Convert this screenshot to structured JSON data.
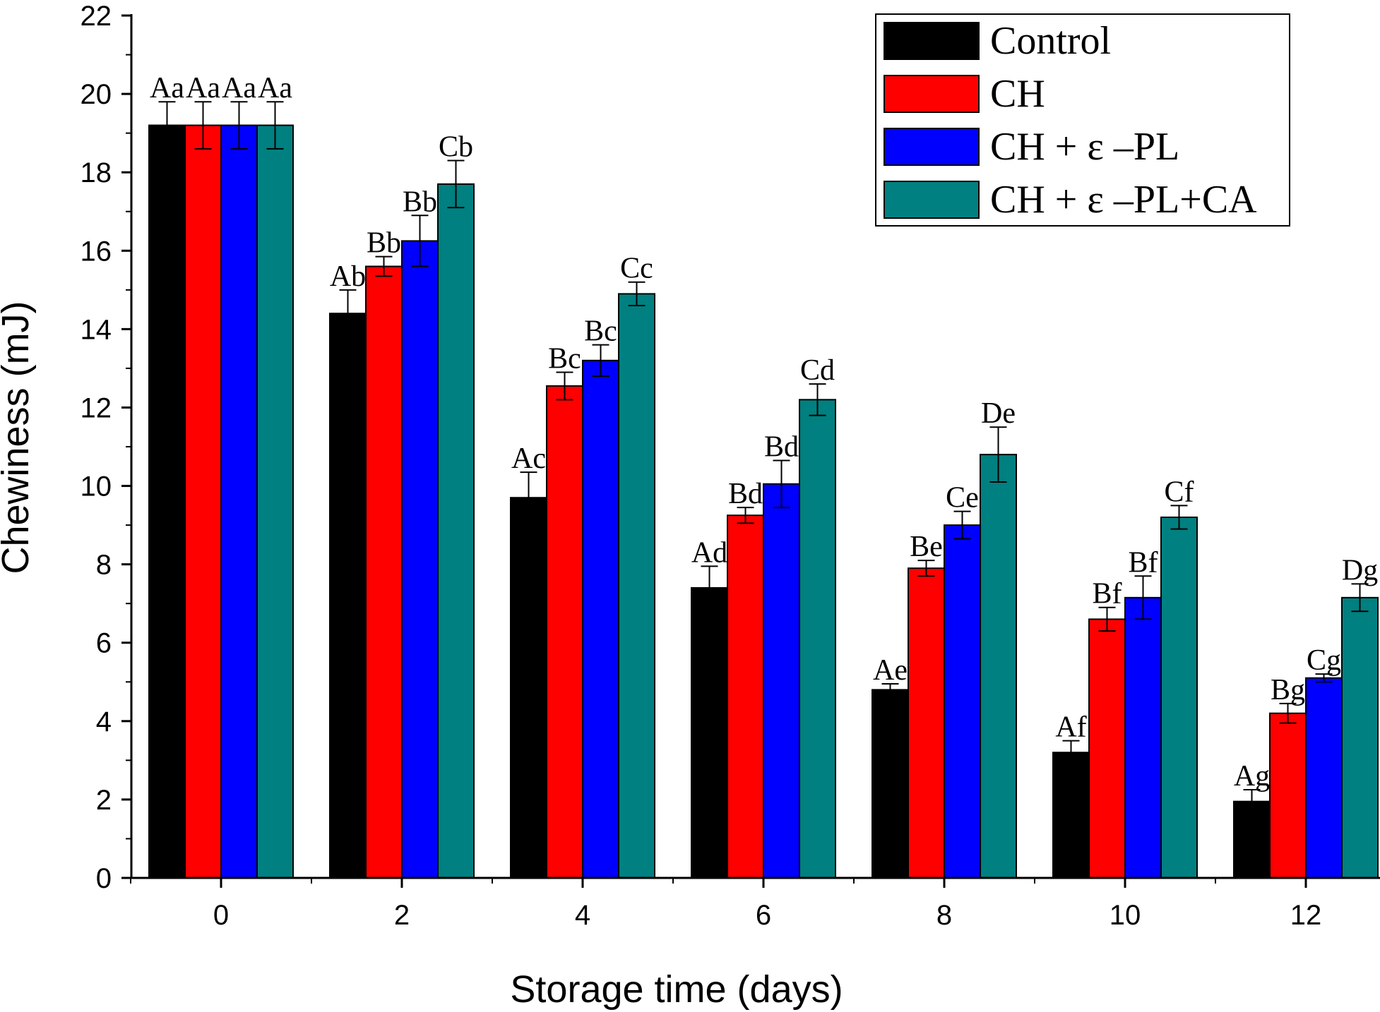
{
  "chart_data": {
    "type": "bar",
    "title": "",
    "xlabel": "Storage time (days)",
    "ylabel": "Chewiness (mJ)",
    "ylim": [
      0,
      22
    ],
    "yticks": [
      "0",
      "2",
      "4",
      "6",
      "8",
      "10",
      "12",
      "14",
      "16",
      "18",
      "20",
      "22"
    ],
    "categories": [
      "0",
      "2",
      "4",
      "6",
      "8",
      "10",
      "12"
    ],
    "legend_position": "top-right",
    "grid": false,
    "series": [
      {
        "name": "Control",
        "color": "#000000",
        "values": [
          19.2,
          14.4,
          9.7,
          7.4,
          4.8,
          3.2,
          1.95
        ],
        "errors": [
          0.6,
          0.6,
          0.65,
          0.55,
          0.15,
          0.3,
          0.3
        ],
        "labels": [
          "Aa",
          "Ab",
          "Ac",
          "Ad",
          "Ae",
          "Af",
          "Ag"
        ]
      },
      {
        "name": "CH",
        "color": "#ff0000",
        "values": [
          19.2,
          15.6,
          12.55,
          9.25,
          7.9,
          6.6,
          4.2
        ],
        "errors": [
          0.6,
          0.25,
          0.35,
          0.2,
          0.2,
          0.3,
          0.25
        ],
        "labels": [
          "Aa",
          "Bb",
          "Bc",
          "Bd",
          "Be",
          "Bf",
          "Bg"
        ]
      },
      {
        "name": "CH + ε –PL",
        "color": "#0000ff",
        "values": [
          19.2,
          16.25,
          13.2,
          10.05,
          9.0,
          7.15,
          5.1
        ],
        "errors": [
          0.6,
          0.65,
          0.4,
          0.6,
          0.35,
          0.55,
          0.1
        ],
        "labels": [
          "Aa",
          "Bb",
          "Bc",
          "Bd",
          "Ce",
          "Bf",
          "Cg"
        ]
      },
      {
        "name": "CH + ε –PL+CA",
        "color": "#008080",
        "values": [
          19.2,
          17.7,
          14.9,
          12.2,
          10.8,
          9.2,
          7.15
        ],
        "errors": [
          0.6,
          0.6,
          0.3,
          0.4,
          0.7,
          0.3,
          0.35
        ],
        "labels": [
          "Aa",
          "Cb",
          "Cc",
          "Cd",
          "De",
          "Cf",
          "Dg"
        ]
      }
    ]
  }
}
